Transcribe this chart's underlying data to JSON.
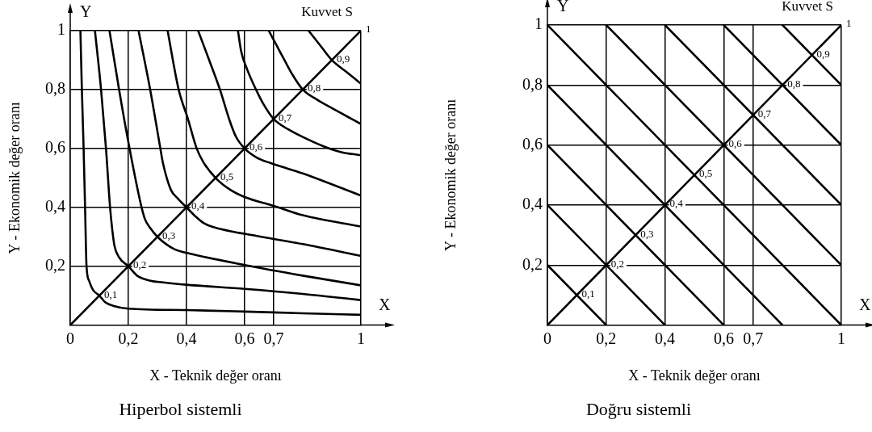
{
  "chart_data": [
    {
      "type": "line",
      "title": "Hiperbol sistemli",
      "xlabel": "X - Teknik değer oranı",
      "ylabel": "Y - Ekonomik değer oranı",
      "xlim": [
        0,
        1
      ],
      "ylim": [
        0,
        1
      ],
      "xticks": [
        {
          "value": 0,
          "label": "0"
        },
        {
          "value": 0.2,
          "label": "0,2"
        },
        {
          "value": 0.4,
          "label": "0,4"
        },
        {
          "value": 0.6,
          "label": "0,6"
        },
        {
          "value": 0.7,
          "label": "0,7"
        },
        {
          "value": 1,
          "label": "1"
        }
      ],
      "yticks": [
        {
          "value": 0.2,
          "label": "0,2"
        },
        {
          "value": 0.4,
          "label": "0,4"
        },
        {
          "value": 0.6,
          "label": "0,6"
        },
        {
          "value": 0.8,
          "label": "0,8"
        },
        {
          "value": 1,
          "label": "1"
        }
      ],
      "grid": true,
      "marker": "none",
      "line_style": "solid",
      "annotations": [
        "Y",
        "X",
        "Kuvvet S",
        {
          "text": "0,1",
          "x": 0.1,
          "y": 0.1
        },
        {
          "text": "0,2",
          "x": 0.2,
          "y": 0.2
        },
        {
          "text": "0,3",
          "x": 0.3,
          "y": 0.3
        },
        {
          "text": "0,4",
          "x": 0.4,
          "y": 0.4
        },
        {
          "text": "0,5",
          "x": 0.5,
          "y": 0.5
        },
        {
          "text": "0,6",
          "x": 0.6,
          "y": 0.6
        },
        {
          "text": "0,7",
          "x": 0.7,
          "y": 0.7
        },
        {
          "text": "0,8",
          "x": 0.8,
          "y": 0.8
        },
        {
          "text": "0,9",
          "x": 0.9,
          "y": 0.9
        },
        {
          "text": "1",
          "x": 1,
          "y": 1
        }
      ],
      "series": [
        {
          "color": "#000000",
          "x": [
            0,
            1
          ],
          "values": [
            0,
            1
          ]
        },
        {
          "color": "#000000",
          "x": [
            0.035,
            0.04,
            0.046,
            0.051,
            0.056,
            0.065,
            0.078,
            0.1,
            0.12,
            0.15,
            0.2,
            0.4,
            0.6,
            0.8,
            1
          ],
          "values": [
            1,
            0.8,
            0.6,
            0.4,
            0.2,
            0.15,
            0.12,
            0.1,
            0.078,
            0.065,
            0.056,
            0.051,
            0.046,
            0.04,
            0.035
          ]
        },
        {
          "color": "#000000",
          "x": [
            0.085,
            0.106,
            0.123,
            0.137,
            0.145,
            0.152,
            0.168,
            0.2,
            0.23,
            0.27,
            0.32,
            0.4,
            0.6,
            0.8,
            1
          ],
          "values": [
            1,
            0.8,
            0.6,
            0.4,
            0.32,
            0.27,
            0.23,
            0.2,
            0.168,
            0.152,
            0.145,
            0.137,
            0.123,
            0.106,
            0.085
          ]
        },
        {
          "color": "#000000",
          "x": [
            0.135,
            0.168,
            0.204,
            0.243,
            0.257,
            0.275,
            0.3,
            0.33,
            0.36,
            0.41,
            0.6,
            0.8,
            1
          ],
          "values": [
            1,
            0.8,
            0.6,
            0.41,
            0.36,
            0.33,
            0.3,
            0.275,
            0.257,
            0.243,
            0.204,
            0.168,
            0.135
          ]
        },
        {
          "color": "#000000",
          "x": [
            0.235,
            0.275,
            0.31,
            0.319,
            0.346,
            0.37,
            0.4,
            0.43,
            0.46,
            0.55,
            0.6,
            0.8,
            1
          ],
          "values": [
            1,
            0.8,
            0.6,
            0.55,
            0.46,
            0.43,
            0.4,
            0.37,
            0.346,
            0.319,
            0.31,
            0.275,
            0.235
          ]
        },
        {
          "color": "#000000",
          "x": [
            0.335,
            0.373,
            0.405,
            0.435,
            0.46,
            0.5,
            0.55,
            0.6,
            0.7,
            0.8,
            1
          ],
          "values": [
            1,
            0.8,
            0.7,
            0.6,
            0.55,
            0.5,
            0.46,
            0.435,
            0.405,
            0.373,
            0.335
          ]
        },
        {
          "color": "#000000",
          "x": [
            0.44,
            0.478,
            0.515,
            0.55,
            0.57,
            0.6,
            0.64,
            0.69,
            0.8,
            0.9,
            1
          ],
          "values": [
            1,
            0.9,
            0.8,
            0.69,
            0.64,
            0.6,
            0.57,
            0.55,
            0.515,
            0.478,
            0.44
          ]
        },
        {
          "color": "#000000",
          "x": [
            0.577,
            0.588,
            0.608,
            0.639,
            0.665,
            0.7,
            0.75,
            0.8,
            0.87,
            0.93,
            1
          ],
          "values": [
            1,
            0.93,
            0.87,
            0.8,
            0.75,
            0.7,
            0.665,
            0.639,
            0.608,
            0.588,
            0.577
          ]
        },
        {
          "color": "#000000",
          "x": [
            0.683,
            0.71,
            0.737,
            0.765,
            0.8,
            0.85,
            0.9,
            0.95,
            1
          ],
          "values": [
            1,
            0.95,
            0.9,
            0.85,
            0.8,
            0.765,
            0.737,
            0.71,
            0.683
          ]
        },
        {
          "color": "#000000",
          "x": [
            0.82,
            0.86,
            0.9,
            0.95,
            1
          ],
          "values": [
            1,
            0.95,
            0.9,
            0.86,
            0.82
          ]
        }
      ]
    },
    {
      "type": "line",
      "title": "Doğru sistemli",
      "xlabel": "X - Teknik değer oranı",
      "ylabel": "Y - Ekonomik değer oranı",
      "xlim": [
        0,
        1
      ],
      "ylim": [
        0,
        1
      ],
      "xticks": [
        {
          "value": 0,
          "label": "0"
        },
        {
          "value": 0.2,
          "label": "0,2"
        },
        {
          "value": 0.4,
          "label": "0,4"
        },
        {
          "value": 0.6,
          "label": "0,6"
        },
        {
          "value": 0.7,
          "label": "0,7"
        },
        {
          "value": 1,
          "label": "1"
        }
      ],
      "yticks": [
        {
          "value": 0.2,
          "label": "0,2"
        },
        {
          "value": 0.4,
          "label": "0,4"
        },
        {
          "value": 0.6,
          "label": "0,6"
        },
        {
          "value": 0.8,
          "label": "0,8"
        },
        {
          "value": 1,
          "label": "1"
        }
      ],
      "grid": true,
      "marker": "none",
      "line_style": "solid",
      "annotations": [
        "Y",
        "X",
        "Kuvvet S",
        {
          "text": "0,1",
          "x": 0.1,
          "y": 0.1
        },
        {
          "text": "0,2",
          "x": 0.2,
          "y": 0.2
        },
        {
          "text": "0,3",
          "x": 0.3,
          "y": 0.3
        },
        {
          "text": "0,4",
          "x": 0.4,
          "y": 0.4
        },
        {
          "text": "0,5",
          "x": 0.5,
          "y": 0.5
        },
        {
          "text": "0,6",
          "x": 0.6,
          "y": 0.6
        },
        {
          "text": "0,7",
          "x": 0.7,
          "y": 0.7
        },
        {
          "text": "0,8",
          "x": 0.8,
          "y": 0.8
        },
        {
          "text": "0,9",
          "x": 0.9,
          "y": 0.9
        },
        {
          "text": "1",
          "x": 1,
          "y": 1
        }
      ],
      "series": [
        {
          "color": "#000000",
          "x": [
            0,
            1
          ],
          "values": [
            0,
            1
          ]
        },
        {
          "color": "#000000",
          "x": [
            0,
            0.2
          ],
          "values": [
            0.2,
            0
          ]
        },
        {
          "color": "#000000",
          "x": [
            0,
            0.4
          ],
          "values": [
            0.4,
            0
          ]
        },
        {
          "color": "#000000",
          "x": [
            0,
            0.6
          ],
          "values": [
            0.6,
            0
          ]
        },
        {
          "color": "#000000",
          "x": [
            0,
            0.8
          ],
          "values": [
            0.8,
            0
          ]
        },
        {
          "color": "#000000",
          "x": [
            0,
            1
          ],
          "values": [
            1,
            0
          ]
        },
        {
          "color": "#000000",
          "x": [
            0.2,
            1
          ],
          "values": [
            1,
            0.2
          ]
        },
        {
          "color": "#000000",
          "x": [
            0.4,
            1
          ],
          "values": [
            1,
            0.4
          ]
        },
        {
          "color": "#000000",
          "x": [
            0.6,
            1
          ],
          "values": [
            1,
            0.6
          ]
        },
        {
          "color": "#000000",
          "x": [
            0.8,
            1
          ],
          "values": [
            1,
            0.8
          ]
        }
      ]
    }
  ]
}
